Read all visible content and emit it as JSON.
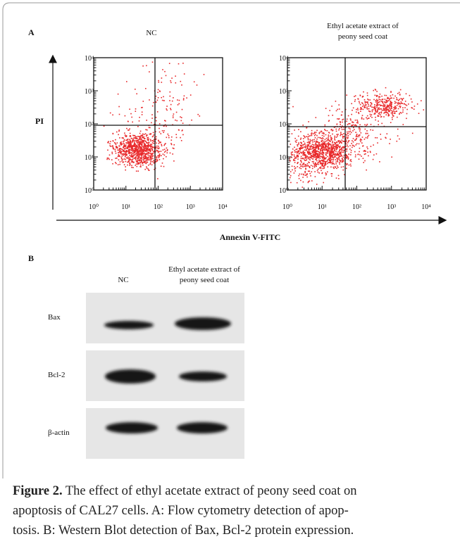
{
  "panel_a": {
    "label": "A",
    "plots": [
      {
        "title": [
          "NC"
        ]
      },
      {
        "title": [
          "Ethyl acetate extract of",
          "peony seed coat"
        ]
      }
    ],
    "y_axis_label": "PI",
    "x_axis_label": "Annexin V-FITC",
    "tick_labels": [
      "10⁰",
      "10¹",
      "10²",
      "10³",
      "10⁴"
    ]
  },
  "panel_b": {
    "label": "B",
    "columns": [
      [
        "NC"
      ],
      [
        "Ethyl acetate extract of",
        "peony seed coat"
      ]
    ],
    "rows": [
      "Bax",
      "Bcl-2",
      "β-actin"
    ]
  },
  "caption": {
    "label": "Figure 2.",
    "lines": [
      "The effect of ethyl acetate extract of peony seed coat on",
      "apoptosis of CAL27 cells. A: Flow cytometry detection of apop-",
      "tosis. B: Western Blot detection of Bax, Bcl-2 protein expression."
    ]
  }
}
